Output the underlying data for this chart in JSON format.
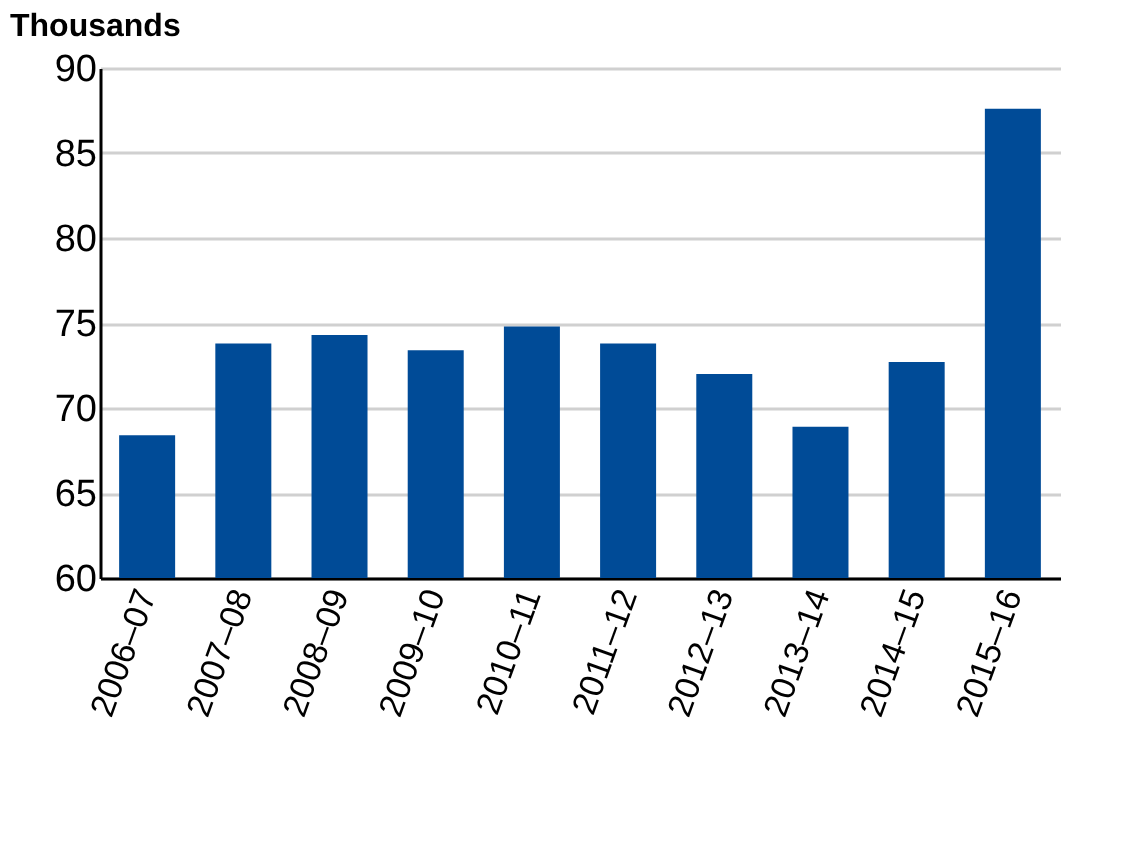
{
  "chart_data": {
    "type": "bar",
    "ylabel": "Thousands",
    "categories": [
      "2006–07",
      "2007–08",
      "2008–09",
      "2009–10",
      "2010–11",
      "2011–12",
      "2012–13",
      "2013–14",
      "2014–15",
      "2015–16"
    ],
    "values": [
      68.4,
      73.8,
      74.3,
      73.4,
      74.8,
      73.8,
      72.0,
      68.9,
      72.7,
      87.6
    ],
    "color": "#004b97",
    "ylim": [
      60,
      90
    ],
    "yticks": [
      60,
      65,
      70,
      75,
      80,
      85,
      90
    ],
    "grid": "y"
  }
}
